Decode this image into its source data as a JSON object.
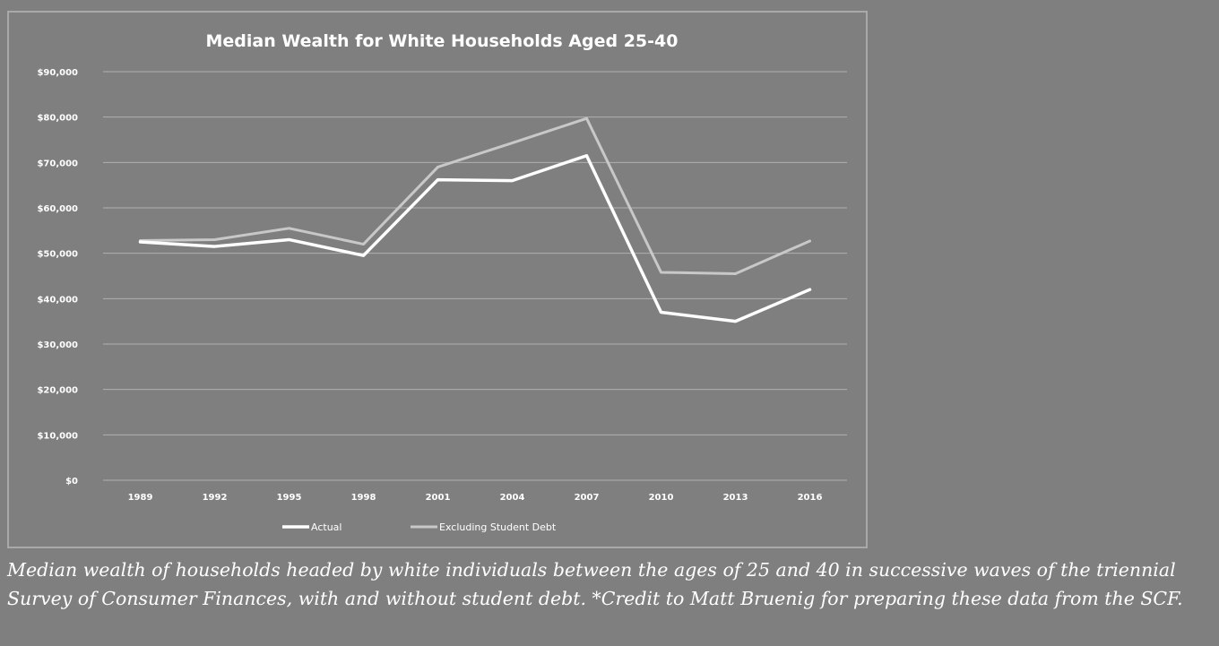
{
  "colors": {
    "background": "#7f7f7f",
    "gridline": "#b0b0b0",
    "text": "#ffffff",
    "actual": "#ffffff",
    "excluding": "#c8c8c8"
  },
  "chart_data": {
    "type": "line",
    "title": "Median Wealth for White Households Aged 25-40",
    "xlabel": "",
    "ylabel": "",
    "categories": [
      "1989",
      "1992",
      "1995",
      "1998",
      "2001",
      "2004",
      "2007",
      "2010",
      "2013",
      "2016"
    ],
    "ylim": [
      0,
      90000
    ],
    "yticks": [
      0,
      10000,
      20000,
      30000,
      40000,
      50000,
      60000,
      70000,
      80000,
      90000
    ],
    "ytick_labels": [
      "$0",
      "$10,000",
      "$20,000",
      "$30,000",
      "$40,000",
      "$50,000",
      "$60,000",
      "$70,000",
      "$80,000",
      "$90,000"
    ],
    "grid": true,
    "legend_position": "bottom",
    "series": [
      {
        "name": "Actual",
        "color": "#ffffff",
        "values": [
          52500,
          51500,
          53000,
          49500,
          66200,
          66000,
          71500,
          37000,
          35000,
          42000
        ]
      },
      {
        "name": "Excluding Student Debt",
        "color": "#c8c8c8",
        "values": [
          52800,
          53000,
          55500,
          52000,
          69000,
          74300,
          79700,
          45800,
          45500,
          52700
        ]
      }
    ]
  },
  "caption": "Median wealth of households headed by white individuals between the ages of 25 and 40 in successive waves of the triennial Survey of Consumer Finances, with and without student debt. *Credit to Matt Bruenig for preparing these data from the SCF."
}
